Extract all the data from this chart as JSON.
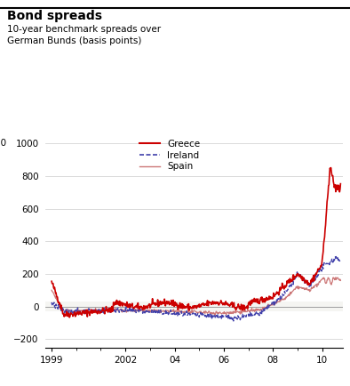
{
  "title": "Bond spreads",
  "subtitle": "10‐year benchmark spreads over\nGerman Bunds (basis points)",
  "ylim": [
    -250,
    1050
  ],
  "yticks": [
    -200,
    0,
    200,
    400,
    600,
    800,
    1000
  ],
  "xlim": [
    1998.75,
    2010.85
  ],
  "xtick_labels": [
    "1999",
    "2002",
    "04",
    "06",
    "08",
    "10"
  ],
  "xtick_positions": [
    1999,
    2002,
    2004,
    2006,
    2008,
    2010
  ],
  "greece_color": "#cc0000",
  "ireland_color": "#4040aa",
  "spain_color": "#cc7777",
  "bg_color": "#ffffff",
  "legend_entries": [
    "Greece",
    "Ireland",
    "Spain"
  ]
}
